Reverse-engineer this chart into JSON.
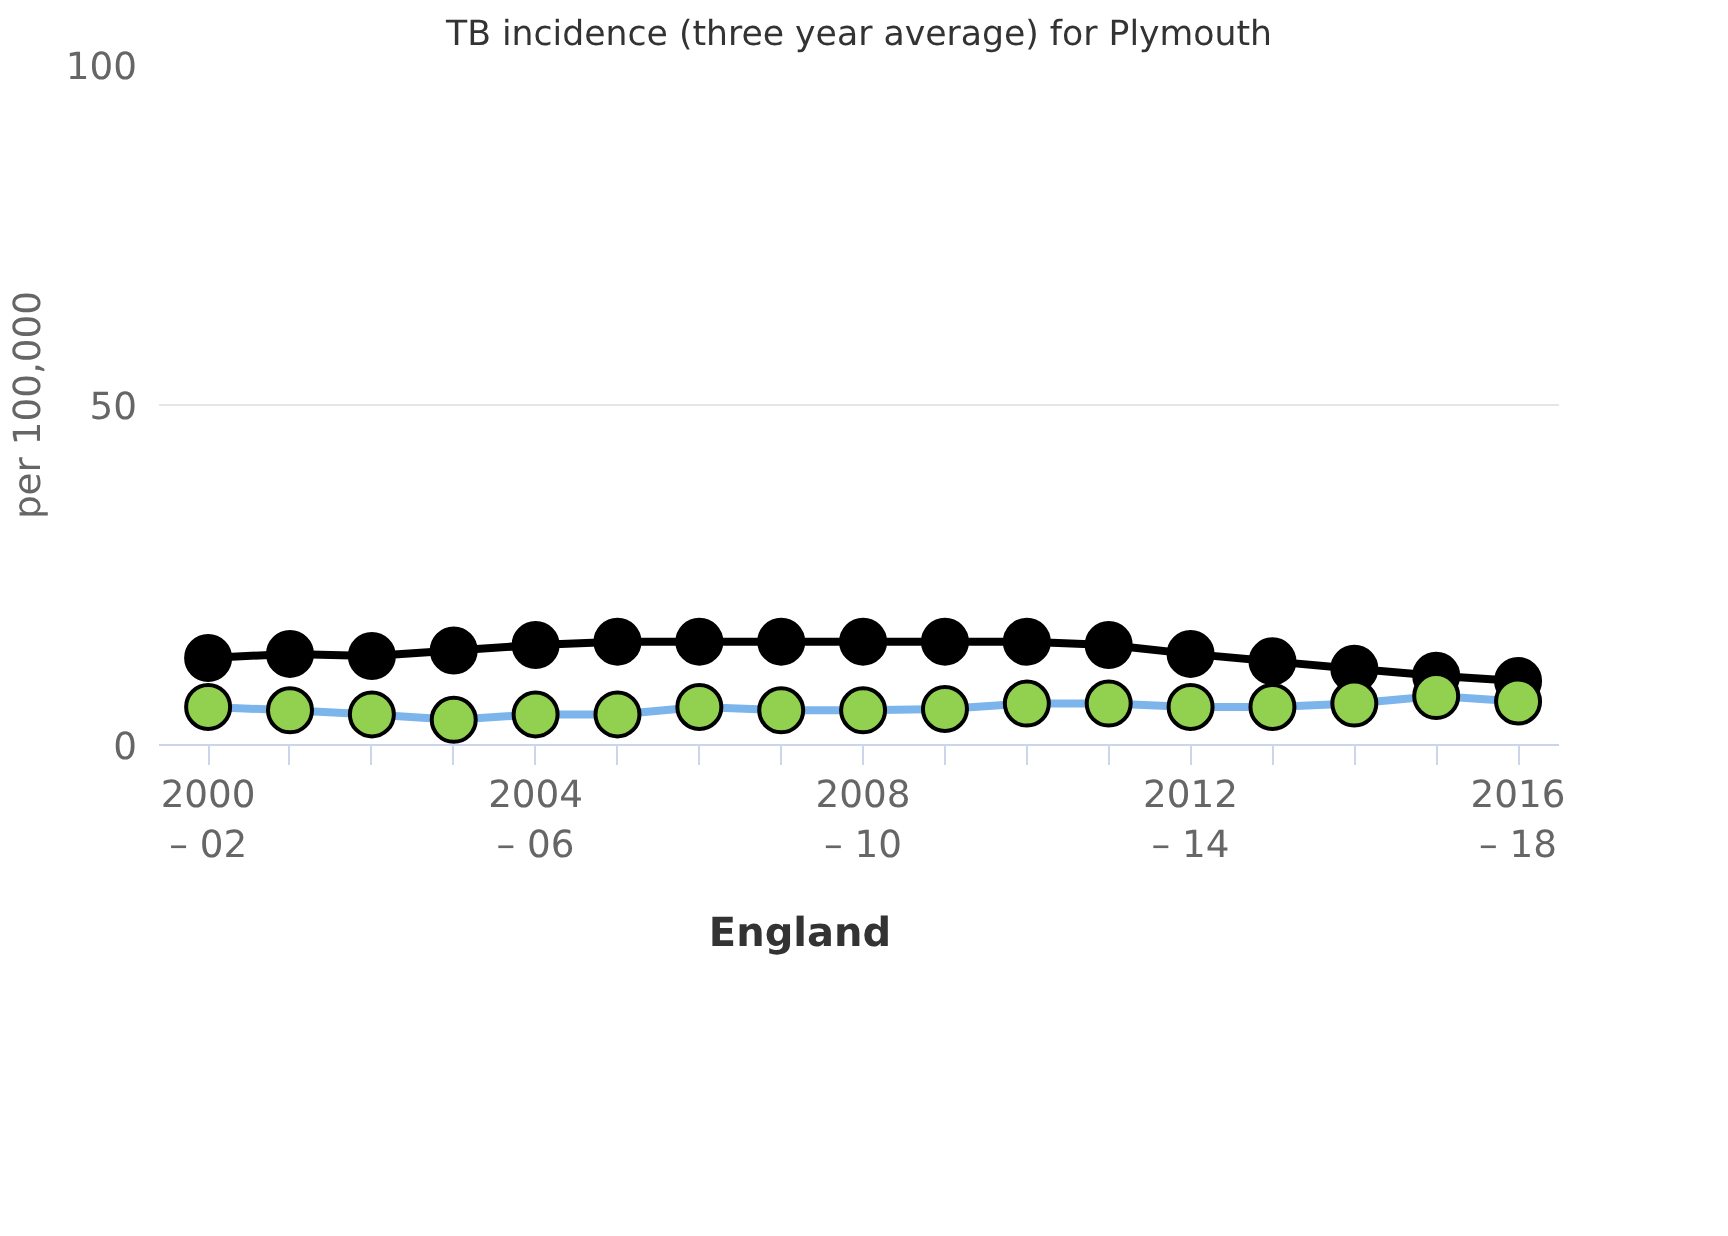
{
  "chart_data": {
    "type": "line",
    "title": "TB incidence (three year average) for Plymouth",
    "ylabel": "per 100,000",
    "categories": [
      "2000\n– 02",
      null,
      null,
      null,
      "2004\n– 06",
      null,
      null,
      null,
      "2008\n– 10",
      null,
      null,
      null,
      "2012\n– 14",
      null,
      null,
      null,
      "2016\n– 18"
    ],
    "series": [
      {
        "name": "England",
        "color": "#000000",
        "values": [
          12.8,
          13.4,
          13.1,
          13.9,
          14.7,
          15.2,
          15.2,
          15.2,
          15.2,
          15.2,
          15.2,
          14.7,
          13.4,
          12.3,
          11.2,
          10.2,
          9.4
        ]
      },
      {
        "color": "#92d050",
        "values": [
          5.6,
          5.1,
          4.5,
          3.7,
          4.5,
          4.5,
          5.6,
          5.1,
          5.1,
          5.3,
          6.1,
          6.1,
          5.6,
          5.6,
          6.1,
          7.2,
          6.4
        ]
      }
    ],
    "ylim": [
      0,
      100
    ],
    "yticks": [
      0,
      50,
      100
    ],
    "grid": "y",
    "legend": "bottom",
    "marker": "circle"
  }
}
